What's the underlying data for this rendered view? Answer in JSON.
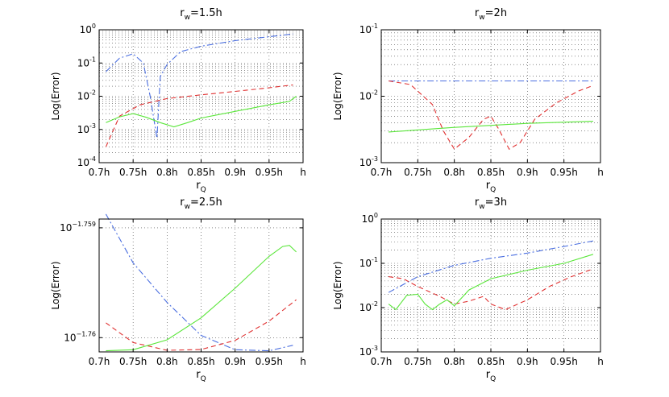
{
  "chart_data": [
    {
      "type": "line",
      "title": {
        "base": "r",
        "sub": "w",
        "rest": "=1.5h"
      },
      "xlabel": {
        "base": "r",
        "sub": "Q"
      },
      "ylabel": "Log(Error)",
      "yscale": "log",
      "grid": true,
      "xlim": [
        0.7,
        1.0
      ],
      "ylim": [
        0.0001,
        1
      ],
      "x_ticks": [
        0.7,
        0.75,
        0.8,
        0.85,
        0.9,
        0.95,
        1.0
      ],
      "x_tick_labels": [
        "0.7h",
        "0.75h",
        "0.8h",
        "0.85h",
        "0.9h",
        "0.95h",
        "h"
      ],
      "y_ticks": [
        0.0001,
        0.001,
        0.01,
        0.1,
        1
      ],
      "y_tick_labels": [
        {
          "base": "10",
          "exp": "-4"
        },
        {
          "base": "10",
          "exp": "-3"
        },
        {
          "base": "10",
          "exp": "-2"
        },
        {
          "base": "10",
          "exp": "-1"
        },
        {
          "base": "10",
          "exp": "0"
        }
      ],
      "series": [
        {
          "color": "#4a6ee0",
          "dash": "8,3,2,3",
          "x": [
            0.71,
            0.73,
            0.75,
            0.765,
            0.775,
            0.785,
            0.79,
            0.8,
            0.82,
            0.85,
            0.9,
            0.95,
            0.985
          ],
          "y": [
            0.055,
            0.14,
            0.19,
            0.1,
            0.01,
            0.00055,
            0.04,
            0.09,
            0.22,
            0.32,
            0.47,
            0.62,
            0.75
          ]
        },
        {
          "color": "#e03030",
          "dash": "6,4",
          "x": [
            0.71,
            0.73,
            0.76,
            0.8,
            0.85,
            0.9,
            0.95,
            0.985
          ],
          "y": [
            0.0003,
            0.0025,
            0.0055,
            0.0085,
            0.011,
            0.014,
            0.018,
            0.022
          ]
        },
        {
          "color": "#5ae63a",
          "dash": "",
          "x": [
            0.71,
            0.73,
            0.75,
            0.77,
            0.79,
            0.81,
            0.83,
            0.85,
            0.9,
            0.95,
            0.98,
            0.99
          ],
          "y": [
            0.0016,
            0.0024,
            0.003,
            0.0023,
            0.0016,
            0.0012,
            0.0016,
            0.0022,
            0.0035,
            0.0055,
            0.007,
            0.01
          ]
        }
      ]
    },
    {
      "type": "line",
      "title": {
        "base": "r",
        "sub": "w",
        "rest": "=2h"
      },
      "xlabel": {
        "base": "r",
        "sub": "Q"
      },
      "ylabel": "Log(Error)",
      "yscale": "log",
      "grid": true,
      "xlim": [
        0.7,
        1.0
      ],
      "ylim": [
        0.001,
        0.1
      ],
      "x_ticks": [
        0.7,
        0.75,
        0.8,
        0.85,
        0.9,
        0.95,
        1.0
      ],
      "x_tick_labels": [
        "0.7h",
        "0.75h",
        "0.8h",
        "0.85h",
        "0.9h",
        "0.95h",
        "h"
      ],
      "y_ticks": [
        0.001,
        0.01,
        0.1
      ],
      "y_tick_labels": [
        {
          "base": "10",
          "exp": "-3"
        },
        {
          "base": "10",
          "exp": "-2"
        },
        {
          "base": "10",
          "exp": "-1"
        }
      ],
      "series": [
        {
          "color": "#4a6ee0",
          "dash": "8,3,2,3",
          "x": [
            0.71,
            0.99
          ],
          "y": [
            0.017,
            0.017
          ]
        },
        {
          "color": "#e03030",
          "dash": "6,4",
          "x": [
            0.71,
            0.74,
            0.77,
            0.785,
            0.8,
            0.82,
            0.84,
            0.85,
            0.86,
            0.875,
            0.89,
            0.91,
            0.94,
            0.97,
            0.99
          ],
          "y": [
            0.017,
            0.015,
            0.0075,
            0.003,
            0.0016,
            0.0024,
            0.0045,
            0.005,
            0.0033,
            0.0016,
            0.002,
            0.0045,
            0.008,
            0.012,
            0.0145
          ]
        },
        {
          "color": "#5ae63a",
          "dash": "",
          "x": [
            0.71,
            0.8,
            0.9,
            0.99
          ],
          "y": [
            0.0029,
            0.0034,
            0.0039,
            0.0042
          ]
        }
      ]
    },
    {
      "type": "line",
      "title": {
        "base": "r",
        "sub": "w",
        "rest": "=2.5h"
      },
      "xlabel": {
        "base": "r",
        "sub": "Q"
      },
      "ylabel": "Log(Error)",
      "yscale": "log",
      "grid": true,
      "xlim": [
        0.7,
        1.0
      ],
      "ylim": [
        -1.76013,
        -1.75892
      ],
      "y_values_are_exponents": true,
      "x_ticks": [
        0.7,
        0.75,
        0.8,
        0.85,
        0.9,
        0.95,
        1.0
      ],
      "x_tick_labels": [
        "0.7h",
        "0.75h",
        "0.8h",
        "0.85h",
        "0.9h",
        "0.95h",
        "h"
      ],
      "y_ticks": [
        -1.76,
        -1.759
      ],
      "y_tick_labels": [
        {
          "base": "10",
          "exp": "−1.76"
        },
        {
          "base": "10",
          "exp": "−1.759"
        }
      ],
      "series": [
        {
          "color": "#4a6ee0",
          "dash": "8,3,2,3",
          "x": [
            0.71,
            0.75,
            0.8,
            0.85,
            0.9,
            0.95,
            0.985
          ],
          "y": [
            -1.758875,
            -1.75932,
            -1.75968,
            -1.75998,
            -1.76011,
            -1.76012,
            -1.76007
          ]
        },
        {
          "color": "#e03030",
          "dash": "6,4",
          "x": [
            0.71,
            0.75,
            0.8,
            0.85,
            0.9,
            0.95,
            0.99
          ],
          "y": [
            -1.759865,
            -1.760045,
            -1.760115,
            -1.760108,
            -1.760025,
            -1.75985,
            -1.759655
          ]
        },
        {
          "color": "#5ae63a",
          "dash": "",
          "x": [
            0.71,
            0.75,
            0.8,
            0.85,
            0.9,
            0.95,
            0.97,
            0.98,
            0.99
          ],
          "y": [
            -1.76012,
            -1.76011,
            -1.76002,
            -1.75982,
            -1.75955,
            -1.75926,
            -1.75917,
            -1.75916,
            -1.75922
          ]
        }
      ]
    },
    {
      "type": "line",
      "title": {
        "base": "r",
        "sub": "w",
        "rest": "=3h"
      },
      "xlabel": {
        "base": "r",
        "sub": "Q"
      },
      "ylabel": "Log(Error)",
      "yscale": "log",
      "grid": true,
      "xlim": [
        0.7,
        1.0
      ],
      "ylim": [
        0.001,
        1
      ],
      "x_ticks": [
        0.7,
        0.75,
        0.8,
        0.85,
        0.9,
        0.95,
        1.0
      ],
      "x_tick_labels": [
        "0.7h",
        "0.75h",
        "0.8h",
        "0.85h",
        "0.9h",
        "0.95h",
        "h"
      ],
      "y_ticks": [
        0.001,
        0.01,
        0.1,
        1
      ],
      "y_tick_labels": [
        {
          "base": "10",
          "exp": "-3"
        },
        {
          "base": "10",
          "exp": "-2"
        },
        {
          "base": "10",
          "exp": "-1"
        },
        {
          "base": "10",
          "exp": "0"
        }
      ],
      "series": [
        {
          "color": "#4a6ee0",
          "dash": "8,3,2,3",
          "x": [
            0.71,
            0.75,
            0.8,
            0.85,
            0.9,
            0.95,
            0.99
          ],
          "y": [
            0.022,
            0.05,
            0.09,
            0.13,
            0.17,
            0.24,
            0.32
          ]
        },
        {
          "color": "#e03030",
          "dash": "6,4",
          "x": [
            0.71,
            0.73,
            0.75,
            0.78,
            0.8,
            0.82,
            0.84,
            0.85,
            0.87,
            0.9,
            0.93,
            0.96,
            0.99
          ],
          "y": [
            0.05,
            0.045,
            0.03,
            0.018,
            0.012,
            0.014,
            0.018,
            0.012,
            0.009,
            0.015,
            0.03,
            0.05,
            0.075
          ]
        },
        {
          "color": "#5ae63a",
          "dash": "",
          "x": [
            0.71,
            0.72,
            0.735,
            0.75,
            0.76,
            0.77,
            0.78,
            0.79,
            0.8,
            0.82,
            0.85,
            0.9,
            0.95,
            0.99
          ],
          "y": [
            0.012,
            0.009,
            0.019,
            0.02,
            0.012,
            0.009,
            0.012,
            0.015,
            0.011,
            0.025,
            0.045,
            0.07,
            0.1,
            0.16
          ]
        }
      ]
    }
  ]
}
